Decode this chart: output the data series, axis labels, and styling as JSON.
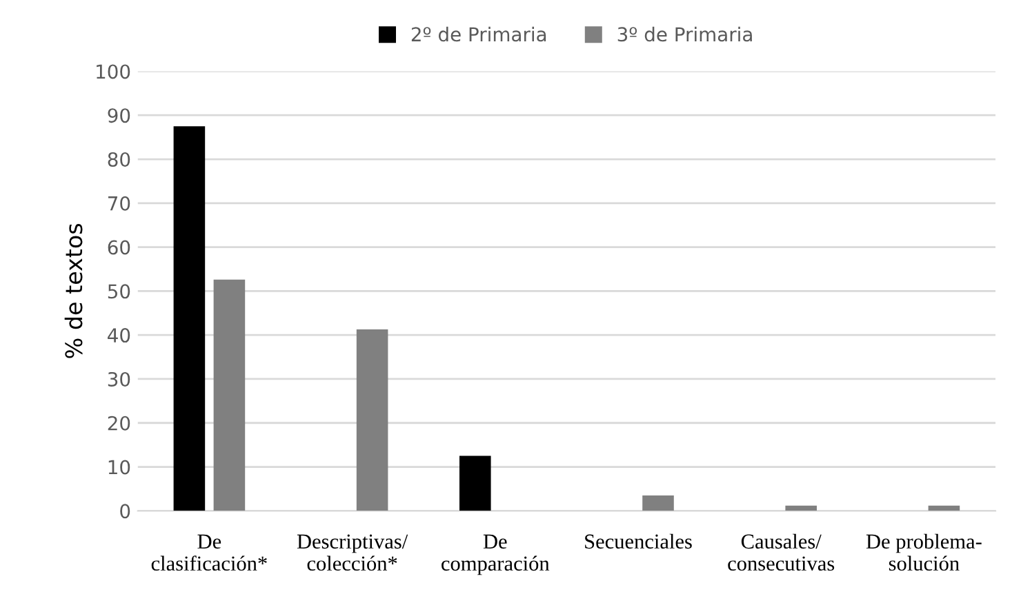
{
  "chart_data": {
    "type": "bar",
    "ylabel": "% de textos",
    "categories": [
      "De\nclasificación*",
      "Descriptivas/\ncolección*",
      "De\ncomparación",
      "Secuenciales",
      "Causales/\nconsecutivas",
      "De problema-\nsolución"
    ],
    "series": [
      {
        "name": "2º de Primaria",
        "color": "#000000",
        "values": [
          87.5,
          0,
          12.5,
          0,
          0,
          0
        ]
      },
      {
        "name": "3º de Primaria",
        "color": "#808080",
        "values": [
          52.6,
          41.3,
          0,
          3.5,
          1.2,
          1.2
        ]
      }
    ],
    "ylim": [
      0,
      100
    ],
    "yticks": [
      0,
      10,
      20,
      30,
      40,
      50,
      60,
      70,
      80,
      90,
      100
    ],
    "grid": "y",
    "legend": "top"
  }
}
